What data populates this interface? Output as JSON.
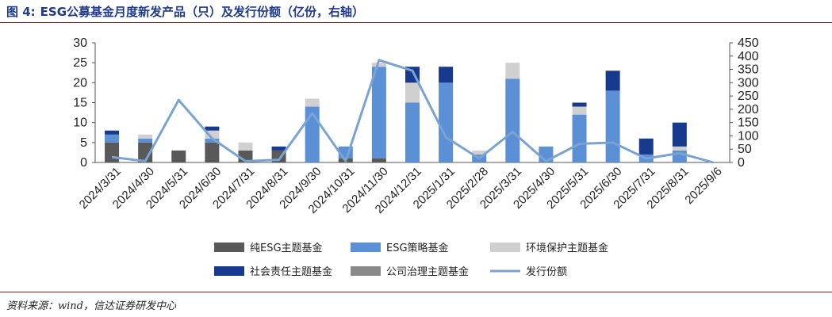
{
  "figure": {
    "label": "图 4:",
    "title": "ESG公募基金月度新发产品（只）及发行份额（亿份，右轴）",
    "source": "资料来源：wind，信达证券研发中心"
  },
  "chart_data": {
    "type": "bar",
    "stacked": true,
    "title": "ESG公募基金月度新发产品（只）及发行份额（亿份，右轴）",
    "categories": [
      "2024/3/31",
      "2024/4/30",
      "2024/5/31",
      "2024/6/30",
      "2024/7/31",
      "2024/8/31",
      "2024/9/30",
      "2024/10/31",
      "2024/11/30",
      "2024/12/31",
      "2025/1/31",
      "2025/2/28",
      "2025/3/31",
      "2025/4/30",
      "2025/5/31",
      "2025/6/30",
      "2025/7/31",
      "2025/8/31",
      "2025/9/6"
    ],
    "ylim": [
      0,
      30
    ],
    "yticks": [
      0,
      5,
      10,
      15,
      20,
      25,
      30
    ],
    "y2lim": [
      0,
      450
    ],
    "y2ticks": [
      0,
      50,
      100,
      150,
      200,
      250,
      300,
      350,
      400,
      450
    ],
    "grid": false,
    "legend_position": "bottom",
    "series": [
      {
        "name": "纯ESG主题基金",
        "color": "#595959",
        "axis": "left",
        "kind": "bar",
        "values": [
          5,
          5,
          3,
          5,
          3,
          3,
          0,
          1,
          1,
          0,
          0,
          0,
          0,
          0,
          0,
          0,
          0,
          0,
          0
        ]
      },
      {
        "name": "ESG策略基金",
        "color": "#5b8fd6",
        "axis": "left",
        "kind": "bar",
        "values": [
          2,
          1,
          0,
          1,
          0,
          0,
          14,
          3,
          23,
          15,
          20,
          2,
          21,
          4,
          12,
          18,
          2,
          3,
          0
        ]
      },
      {
        "name": "环境保护主题基金",
        "color": "#d0d0d0",
        "axis": "left",
        "kind": "bar",
        "values": [
          0,
          1,
          0,
          2,
          2,
          0,
          2,
          0,
          1,
          5,
          0,
          1,
          4,
          0,
          2,
          0,
          0,
          1,
          0
        ]
      },
      {
        "name": "社会责任主题基金",
        "color": "#173a8f",
        "axis": "left",
        "kind": "bar",
        "values": [
          1,
          0,
          0,
          1,
          0,
          1,
          0,
          0,
          0,
          4,
          4,
          0,
          0,
          0,
          1,
          5,
          4,
          6,
          0
        ]
      },
      {
        "name": "公司治理主题基金",
        "color": "#8a8a8a",
        "axis": "left",
        "kind": "bar",
        "values": [
          0,
          0,
          0,
          0,
          0,
          0,
          0,
          0,
          0,
          0,
          0,
          0,
          0,
          0,
          0,
          0,
          0,
          0,
          0
        ]
      },
      {
        "name": "发行份额",
        "color": "#7aa3d2",
        "axis": "right",
        "kind": "line",
        "values": [
          20,
          5,
          235,
          90,
          5,
          10,
          185,
          5,
          385,
          345,
          95,
          15,
          115,
          5,
          70,
          75,
          15,
          35,
          0
        ]
      }
    ]
  }
}
